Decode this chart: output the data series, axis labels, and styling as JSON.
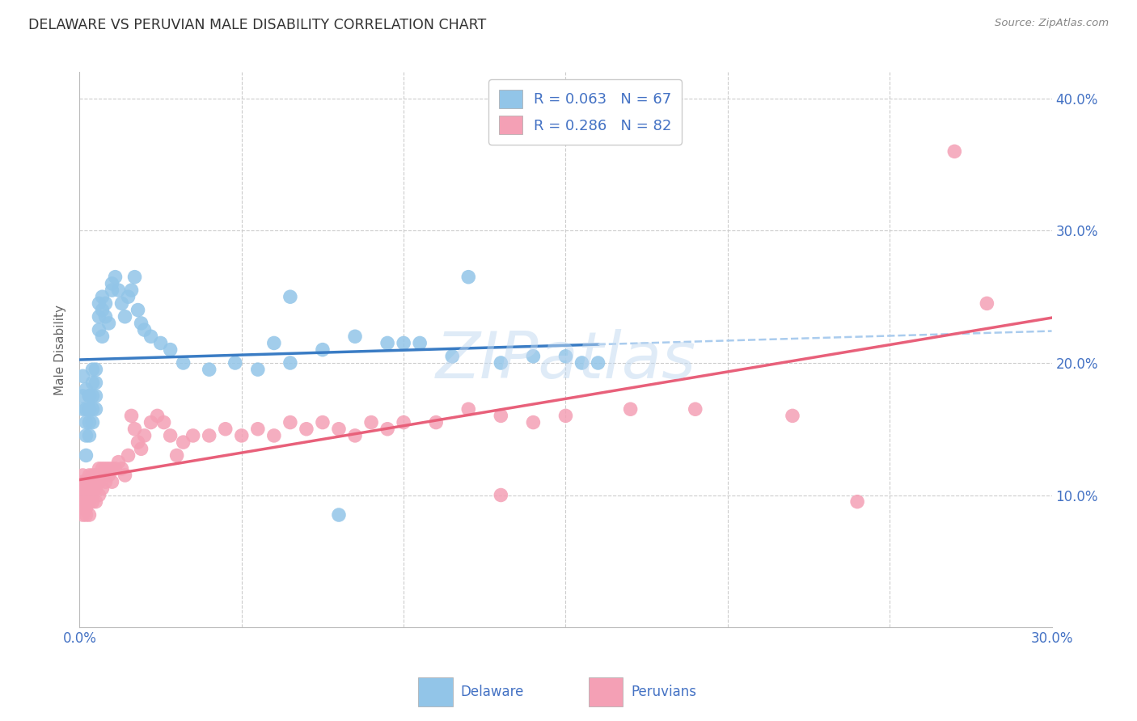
{
  "title": "DELAWARE VS PERUVIAN MALE DISABILITY CORRELATION CHART",
  "source": "Source: ZipAtlas.com",
  "ylabel": "Male Disability",
  "xlim": [
    0.0,
    0.3
  ],
  "ylim": [
    0.0,
    0.42
  ],
  "delaware_color": "#92C5E8",
  "peruvian_color": "#F4A0B5",
  "delaware_line_color": "#3A7CC4",
  "peruvian_line_color": "#E8607A",
  "axis_label_color": "#4472C4",
  "title_color": "#333333",
  "legend_text_color": "#333333",
  "R_delaware": 0.063,
  "N_delaware": 67,
  "R_peruvian": 0.286,
  "N_peruvian": 82,
  "delaware_x": [
    0.001,
    0.001,
    0.001,
    0.002,
    0.002,
    0.002,
    0.002,
    0.002,
    0.003,
    0.003,
    0.003,
    0.003,
    0.003,
    0.003,
    0.004,
    0.004,
    0.004,
    0.004,
    0.004,
    0.005,
    0.005,
    0.005,
    0.005,
    0.006,
    0.006,
    0.006,
    0.007,
    0.007,
    0.007,
    0.008,
    0.008,
    0.009,
    0.01,
    0.01,
    0.011,
    0.012,
    0.013,
    0.014,
    0.015,
    0.016,
    0.017,
    0.018,
    0.019,
    0.02,
    0.022,
    0.025,
    0.028,
    0.032,
    0.04,
    0.048,
    0.055,
    0.06,
    0.065,
    0.075,
    0.085,
    0.095,
    0.1,
    0.105,
    0.115,
    0.12,
    0.13,
    0.14,
    0.15,
    0.155,
    0.16,
    0.065,
    0.08
  ],
  "delaware_y": [
    0.19,
    0.175,
    0.165,
    0.18,
    0.165,
    0.155,
    0.145,
    0.13,
    0.175,
    0.165,
    0.155,
    0.145,
    0.175,
    0.165,
    0.195,
    0.185,
    0.175,
    0.165,
    0.155,
    0.195,
    0.185,
    0.175,
    0.165,
    0.245,
    0.235,
    0.225,
    0.25,
    0.24,
    0.22,
    0.245,
    0.235,
    0.23,
    0.26,
    0.255,
    0.265,
    0.255,
    0.245,
    0.235,
    0.25,
    0.255,
    0.265,
    0.24,
    0.23,
    0.225,
    0.22,
    0.215,
    0.21,
    0.2,
    0.195,
    0.2,
    0.195,
    0.215,
    0.2,
    0.21,
    0.22,
    0.215,
    0.215,
    0.215,
    0.205,
    0.265,
    0.2,
    0.205,
    0.205,
    0.2,
    0.2,
    0.25,
    0.085
  ],
  "peruvian_x": [
    0.001,
    0.001,
    0.001,
    0.001,
    0.001,
    0.001,
    0.001,
    0.002,
    0.002,
    0.002,
    0.002,
    0.002,
    0.002,
    0.003,
    0.003,
    0.003,
    0.003,
    0.003,
    0.003,
    0.004,
    0.004,
    0.004,
    0.004,
    0.004,
    0.005,
    0.005,
    0.005,
    0.005,
    0.006,
    0.006,
    0.006,
    0.007,
    0.007,
    0.007,
    0.008,
    0.008,
    0.009,
    0.009,
    0.01,
    0.01,
    0.011,
    0.012,
    0.013,
    0.014,
    0.015,
    0.016,
    0.017,
    0.018,
    0.019,
    0.02,
    0.022,
    0.024,
    0.026,
    0.028,
    0.03,
    0.032,
    0.035,
    0.04,
    0.045,
    0.05,
    0.055,
    0.06,
    0.065,
    0.07,
    0.075,
    0.08,
    0.085,
    0.09,
    0.095,
    0.1,
    0.11,
    0.12,
    0.13,
    0.14,
    0.15,
    0.17,
    0.19,
    0.22,
    0.24,
    0.27,
    0.28,
    0.13
  ],
  "peruvian_y": [
    0.115,
    0.11,
    0.105,
    0.1,
    0.095,
    0.09,
    0.085,
    0.11,
    0.105,
    0.1,
    0.095,
    0.09,
    0.085,
    0.115,
    0.11,
    0.105,
    0.1,
    0.095,
    0.085,
    0.115,
    0.11,
    0.105,
    0.1,
    0.095,
    0.115,
    0.11,
    0.105,
    0.095,
    0.12,
    0.11,
    0.1,
    0.12,
    0.115,
    0.105,
    0.12,
    0.11,
    0.12,
    0.115,
    0.12,
    0.11,
    0.12,
    0.125,
    0.12,
    0.115,
    0.13,
    0.16,
    0.15,
    0.14,
    0.135,
    0.145,
    0.155,
    0.16,
    0.155,
    0.145,
    0.13,
    0.14,
    0.145,
    0.145,
    0.15,
    0.145,
    0.15,
    0.145,
    0.155,
    0.15,
    0.155,
    0.15,
    0.145,
    0.155,
    0.15,
    0.155,
    0.155,
    0.165,
    0.16,
    0.155,
    0.16,
    0.165,
    0.165,
    0.16,
    0.095,
    0.36,
    0.245,
    0.1
  ],
  "watermark_text": "ZIPatlas",
  "background_color": "#FFFFFF",
  "grid_color": "#CCCCCC"
}
